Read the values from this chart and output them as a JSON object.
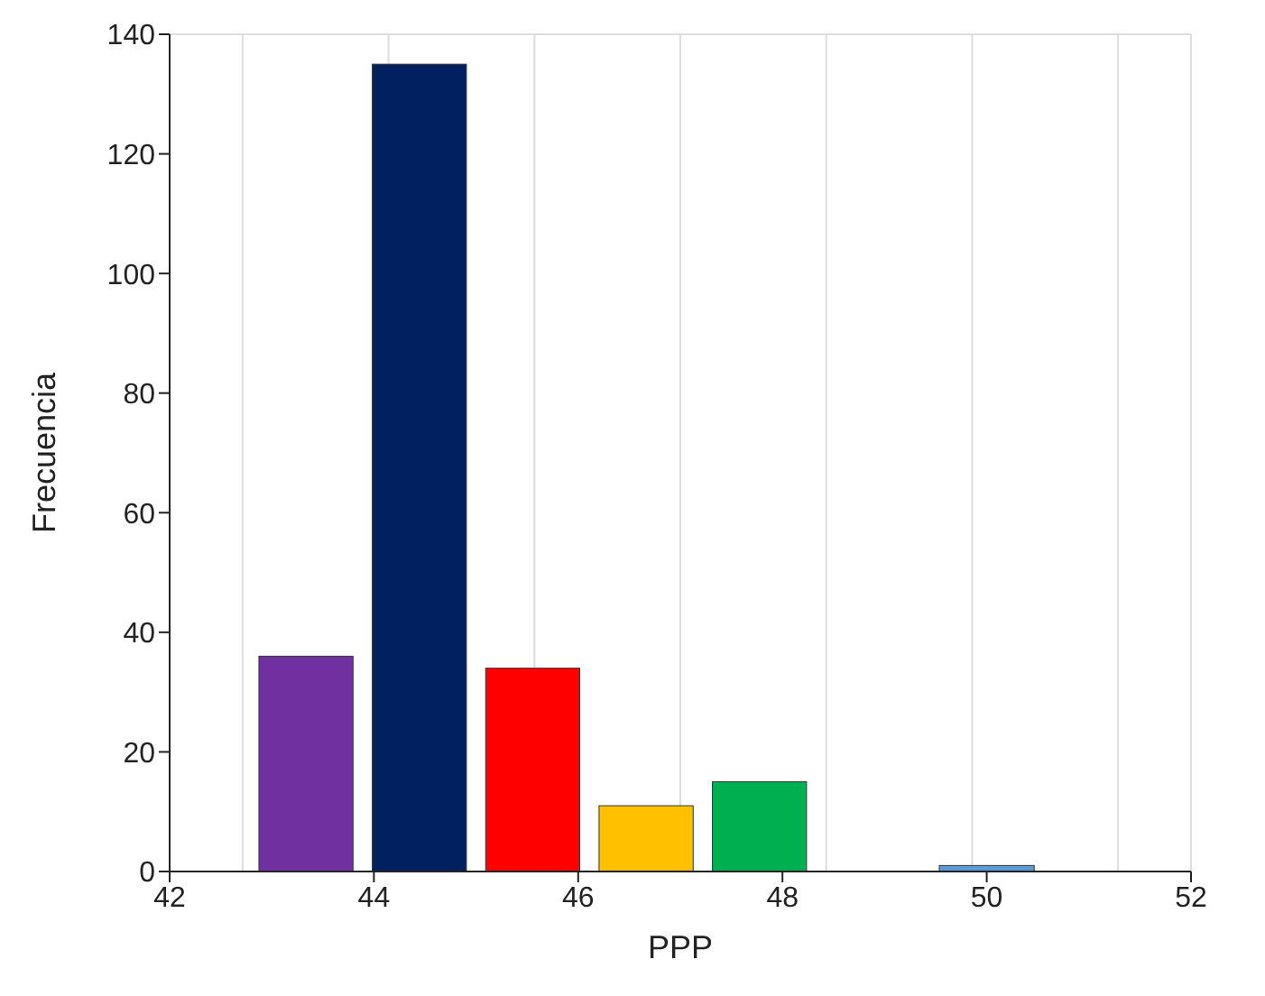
{
  "chart_data": {
    "type": "histogram",
    "xlabel": "PPP",
    "ylabel": "Frecuencia",
    "bins": [
      42.78,
      43.89,
      45,
      46.11,
      47.22,
      48.33,
      49.44,
      50.56
    ],
    "values": [
      36,
      135,
      34,
      11,
      15,
      0,
      1
    ],
    "colors": [
      "#7030a0",
      "#002060",
      "#ff0000",
      "#ffc000",
      "#00b050",
      "#5b9bd5",
      "#5b9bd5"
    ],
    "xlim": [
      42,
      52
    ],
    "xticks": [
      42,
      44,
      46,
      48,
      50,
      52
    ],
    "ylim": [
      0,
      140
    ],
    "yticks": [
      0,
      20,
      40,
      60,
      80,
      100,
      120,
      140
    ],
    "grid": true
  }
}
